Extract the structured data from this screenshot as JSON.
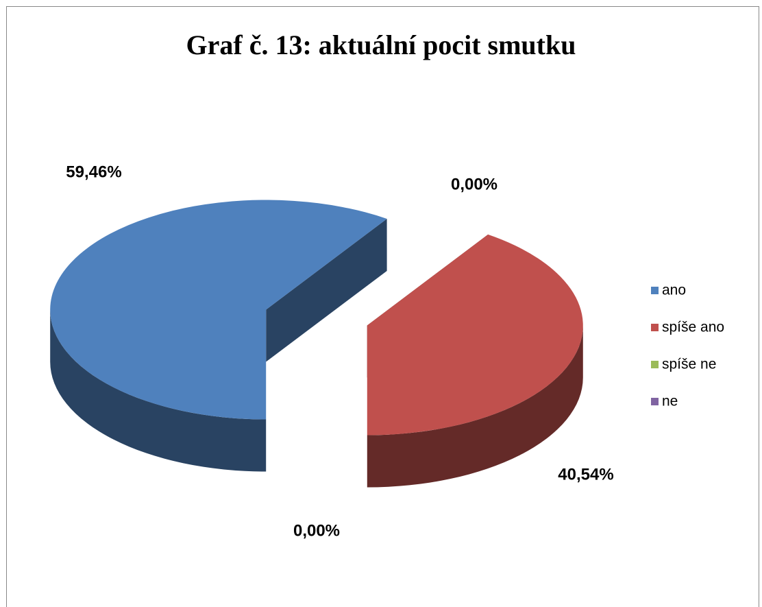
{
  "chart_data": {
    "type": "pie",
    "title": "Graf č. 13: aktuální pocit smutku",
    "categories": [
      "ano",
      "spíše ano",
      "spíše ne",
      "ne"
    ],
    "values": [
      59.46,
      40.54,
      0,
      0
    ],
    "value_labels": [
      "59,46%",
      "40,54%",
      "0,00%",
      "0,00%"
    ],
    "colors": [
      "#4f81bd",
      "#c0504d",
      "#9bbb59",
      "#8064a2"
    ],
    "legend": "right"
  }
}
